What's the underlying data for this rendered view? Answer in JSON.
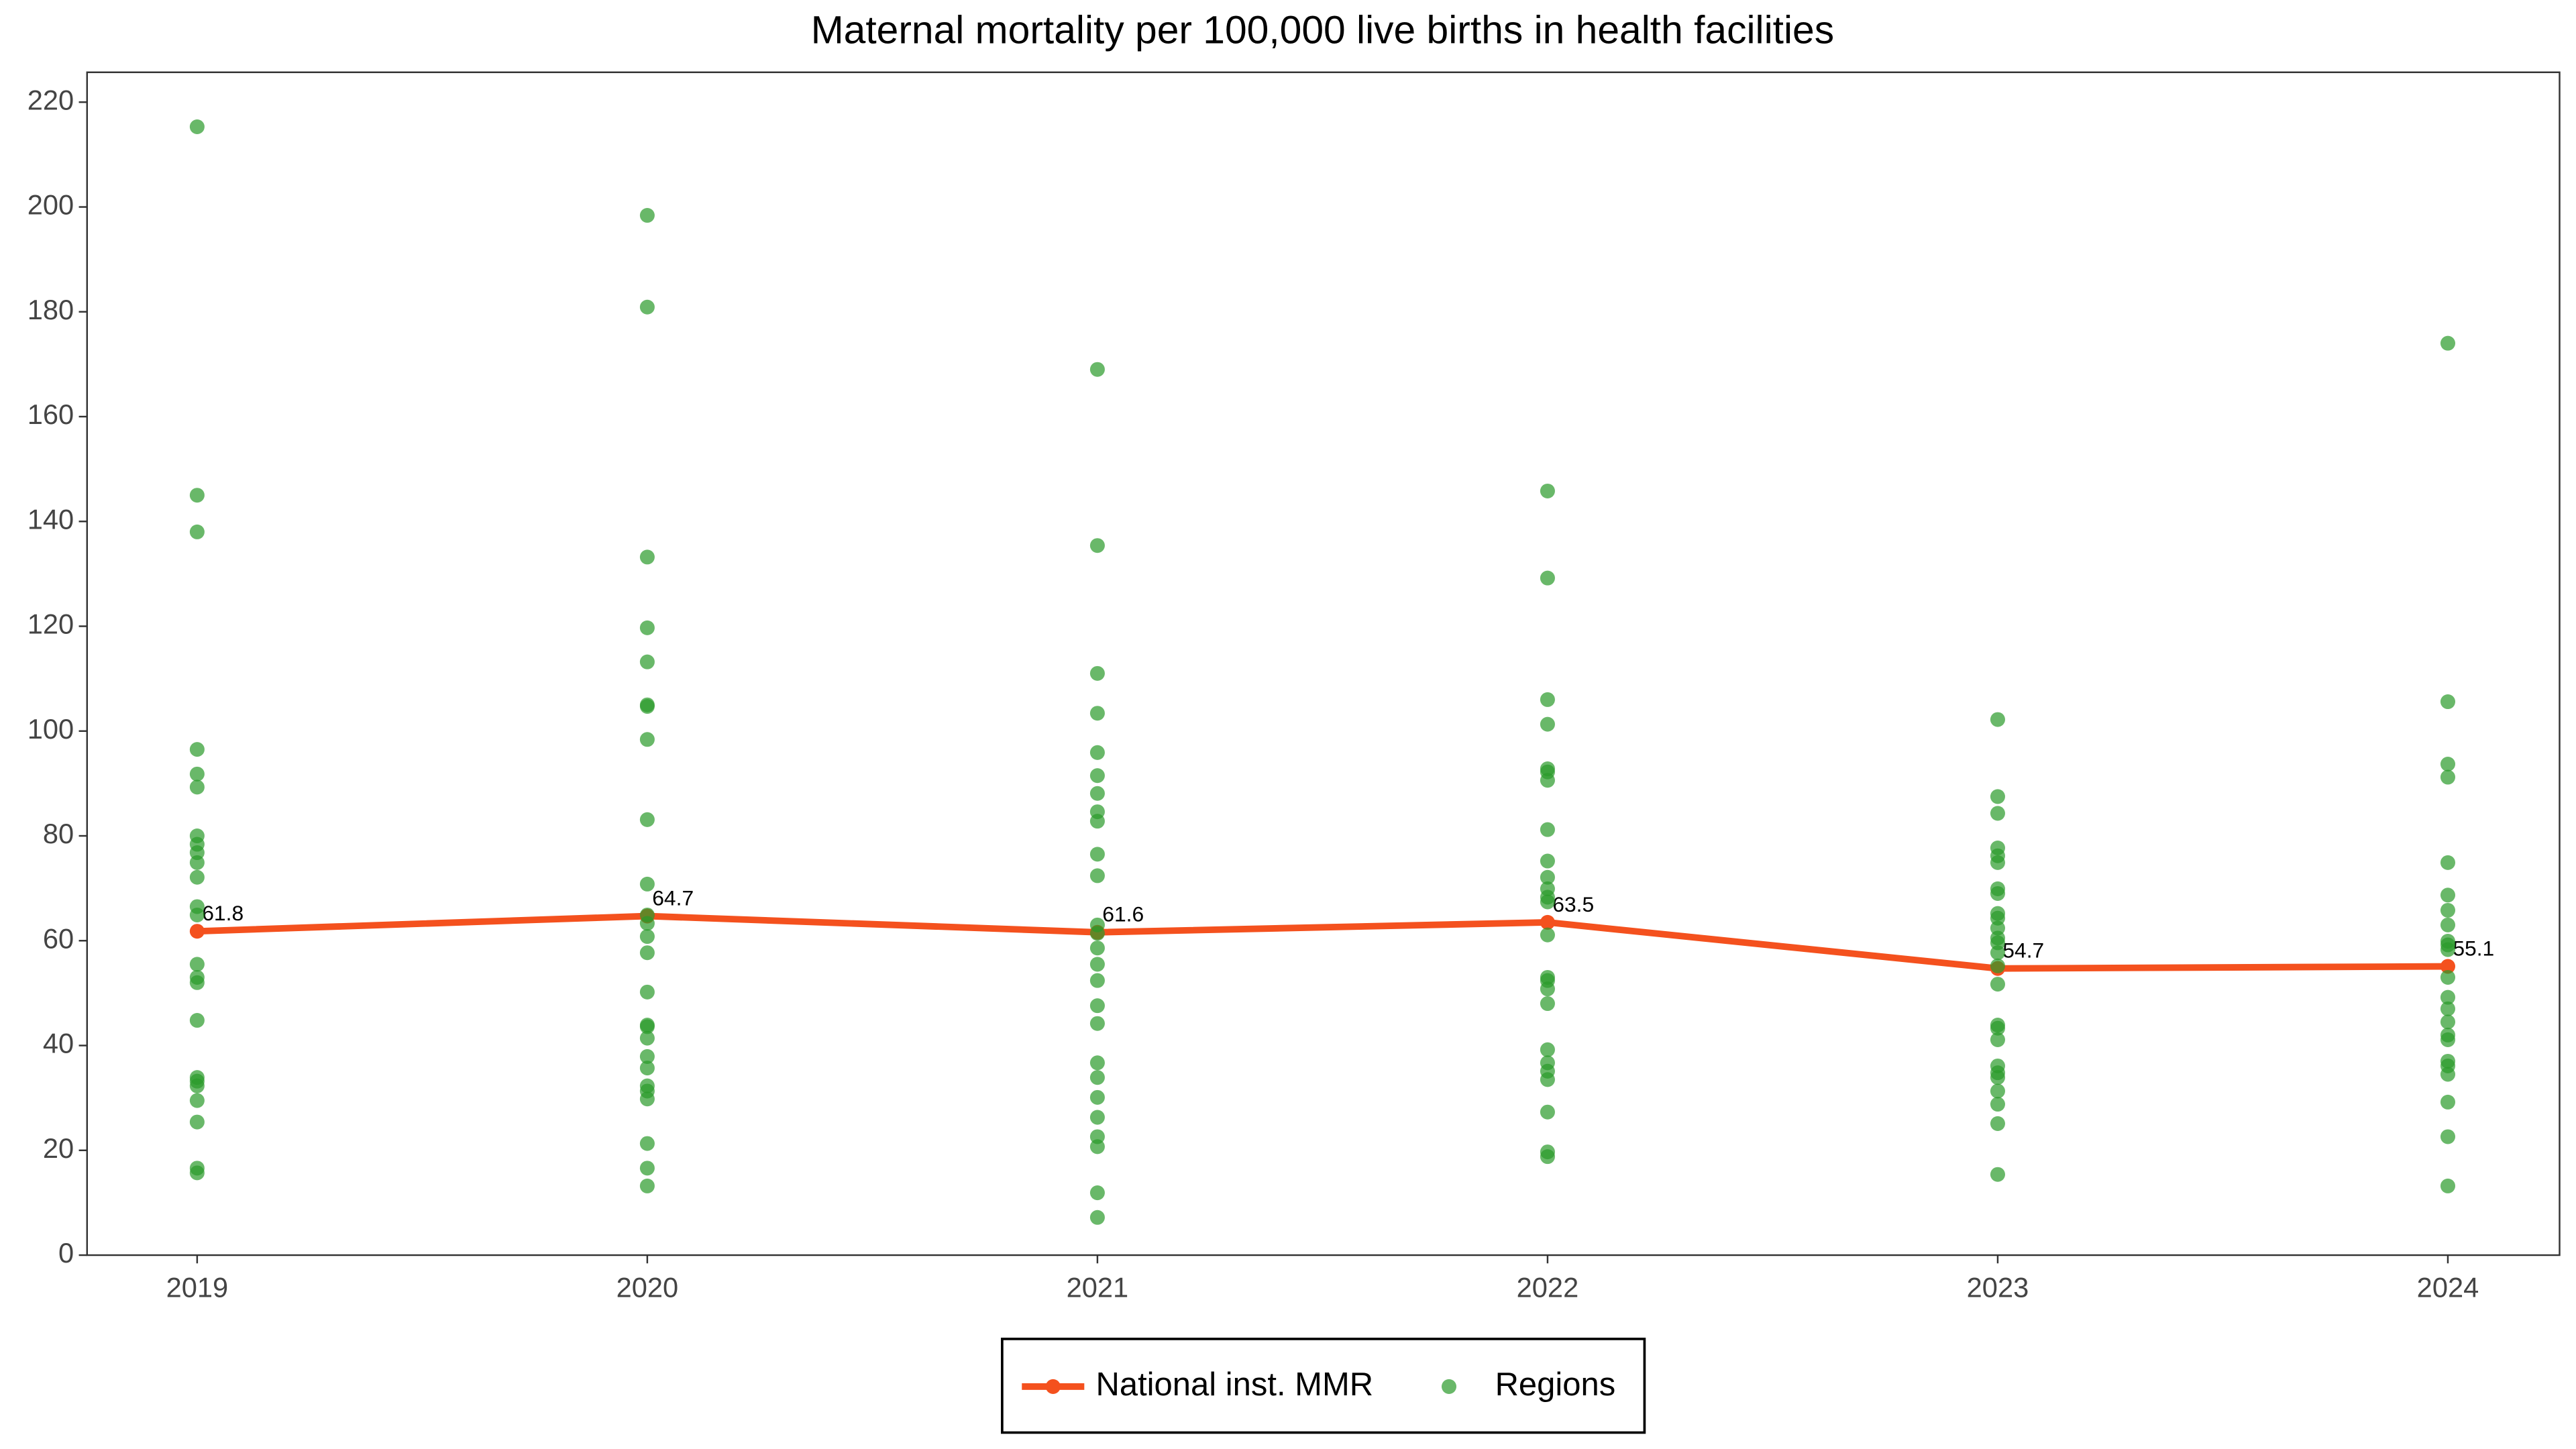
{
  "chart_data": {
    "type": "line",
    "title": "Maternal mortality per 100,000 live births in health facilities",
    "categories": [
      "2019",
      "2020",
      "2021",
      "2022",
      "2023",
      "2024"
    ],
    "ylim": [
      0,
      225.7
    ],
    "yticks": [
      0,
      20,
      40,
      60,
      80,
      100,
      120,
      140,
      160,
      180,
      200,
      220
    ],
    "legend": "bottom",
    "series": [
      {
        "name": "National inst. MMR",
        "type": "line",
        "color": "#f4511e",
        "values": [
          61.8,
          64.7,
          61.6,
          63.5,
          54.7,
          55.1
        ]
      },
      {
        "name": "Regions",
        "type": "scatter",
        "color": "#2a9a2a",
        "values": [
          [
            215.3,
            145,
            138,
            96.5,
            91.8,
            89.3,
            80,
            78.4,
            76.8,
            74.9,
            72.1,
            66.5,
            64.9,
            55.5,
            53,
            52,
            44.8,
            33.9,
            33.2,
            32.3,
            29.5,
            25.4,
            16.6,
            15.7
          ],
          [
            198.4,
            180.9,
            133.2,
            119.7,
            113.2,
            105,
            104.7,
            98.4,
            83.1,
            70.8,
            64.9,
            63.3,
            60.8,
            57.7,
            50.2,
            43.9,
            43.6,
            41.4,
            37.9,
            35.7,
            32.3,
            31.3,
            29.8,
            21.3,
            16.6,
            13.2
          ],
          [
            169,
            135.4,
            111,
            103.4,
            95.9,
            91.5,
            88.1,
            84.6,
            82.8,
            76.5,
            72.4,
            63,
            61.4,
            58.6,
            55.5,
            52.4,
            47.6,
            44.2,
            36.7,
            33.9,
            30.1,
            26.3,
            22.6,
            20.7,
            11.9,
            7.2
          ],
          [
            145.8,
            129.2,
            106,
            101.3,
            92.8,
            92.2,
            90.6,
            81.2,
            75.2,
            72.1,
            69.9,
            68.3,
            67.4,
            61.1,
            53,
            52.4,
            50.8,
            48,
            39.2,
            36.7,
            35.1,
            33.5,
            27.3,
            19.7,
            18.8
          ],
          [
            102.2,
            87.5,
            84.3,
            77.7,
            76.2,
            74.9,
            69.9,
            69,
            65.2,
            64.3,
            62.4,
            60.5,
            59.6,
            57.7,
            55.2,
            51.7,
            43.9,
            43.3,
            41.1,
            36.1,
            34.8,
            33.9,
            31.3,
            28.8,
            25.1,
            15.4
          ],
          [
            174,
            105.6,
            93.7,
            91.2,
            74.9,
            68.7,
            65.8,
            63,
            59.9,
            59.2,
            58.3,
            53,
            49.2,
            47,
            44.5,
            42,
            41.1,
            37,
            36.1,
            34.5,
            29.2,
            22.6,
            13.2
          ]
        ]
      }
    ]
  }
}
